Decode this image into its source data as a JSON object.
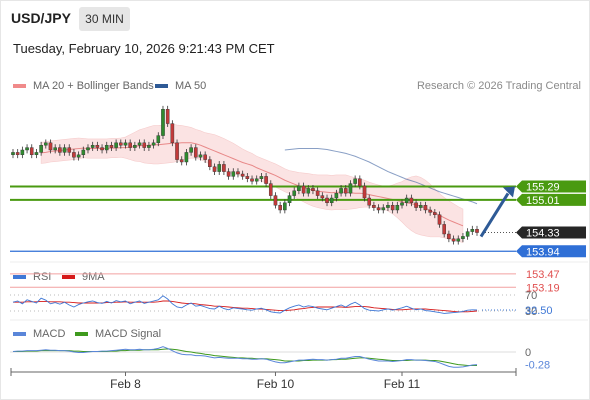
{
  "header": {
    "symbol": "USD/JPY",
    "timeframe": "30 MIN",
    "datetime": "Tuesday, February 10, 2026 9:21:43 PM CET",
    "copyright": "Research © 2026 Trading Central"
  },
  "legend": {
    "bollinger": {
      "label": "MA 20 + Bollinger Bands",
      "color": "#f08a8a"
    },
    "ma50": {
      "label": "MA 50",
      "color": "#2e5a96"
    }
  },
  "chart_data": [
    {
      "type": "candlestick",
      "title": "",
      "ylim": [
        152.9,
        155.9
      ],
      "price_labels": [
        {
          "text": "155.29",
          "value": 155.29,
          "role": "resistance",
          "color": "#4a9a10"
        },
        {
          "text": "155.01",
          "value": 155.01,
          "role": "resistance",
          "color": "#4a9a10"
        },
        {
          "text": "154.33",
          "value": 154.33,
          "role": "last-price",
          "color": "#222222"
        },
        {
          "text": "153.94",
          "value": 153.94,
          "role": "support",
          "color": "#2f6fd6"
        },
        {
          "text": "153.47",
          "value": 153.47,
          "role": "support",
          "color": "#e05050"
        },
        {
          "text": "153.19",
          "value": 153.19,
          "role": "support",
          "color": "#e05050"
        }
      ],
      "forecast_arrow": {
        "from": 154.33,
        "to": 155.29,
        "direction": "up",
        "color": "#2e5a96"
      },
      "close": [
        156.0,
        155.95,
        156.05,
        156.1,
        155.95,
        156.0,
        156.15,
        156.2,
        156.05,
        156.1,
        156.0,
        156.1,
        156.0,
        155.9,
        155.95,
        156.05,
        156.1,
        156.15,
        156.1,
        156.05,
        156.15,
        156.1,
        156.2,
        156.15,
        156.2,
        156.1,
        156.15,
        156.2,
        156.1,
        156.15,
        156.2,
        156.35,
        156.9,
        156.6,
        156.2,
        155.85,
        155.8,
        156.0,
        156.1,
        155.9,
        155.95,
        155.85,
        155.7,
        155.6,
        155.75,
        155.6,
        155.5,
        155.6,
        155.55,
        155.5,
        155.45,
        155.4,
        155.45,
        155.5,
        155.35,
        155.1,
        154.9,
        154.8,
        154.95,
        155.1,
        155.2,
        155.3,
        155.15,
        155.25,
        155.2,
        155.1,
        155.05,
        154.95,
        155.05,
        155.15,
        155.25,
        155.15,
        155.35,
        155.45,
        155.3,
        155.05,
        154.9,
        154.85,
        154.8,
        154.85,
        154.9,
        154.8,
        154.9,
        154.95,
        155.05,
        154.95,
        154.85,
        154.9,
        154.8,
        154.75,
        154.7,
        154.5,
        154.3,
        154.2,
        154.15,
        154.2,
        154.25,
        154.35,
        154.4,
        154.33
      ],
      "ma20": [
        155.99,
        156.0,
        156.02,
        156.03,
        156.04,
        156.05,
        156.06,
        156.07,
        156.08,
        156.09,
        156.08,
        156.08,
        156.08,
        156.08,
        156.08,
        156.09,
        156.09,
        156.1,
        156.1,
        156.11,
        156.12,
        156.14,
        156.14,
        156.15,
        156.16,
        156.16,
        156.17,
        156.18,
        156.19,
        156.19,
        156.2,
        156.2,
        156.2,
        156.18,
        156.15,
        156.11,
        156.07,
        156.03,
        155.99,
        155.95,
        155.91,
        155.87,
        155.83,
        155.79,
        155.76,
        155.73,
        155.68,
        155.64,
        155.6,
        155.56,
        155.52,
        155.47,
        155.42,
        155.38,
        155.34,
        155.3,
        155.27,
        155.24,
        155.21,
        155.19,
        155.18,
        155.17,
        155.16,
        155.17,
        155.17,
        155.17,
        155.16,
        155.15,
        155.15,
        155.14,
        155.12,
        155.1,
        155.08,
        155.06,
        155.04,
        155.02,
        155.0,
        154.97,
        154.95,
        154.93,
        154.91,
        154.88,
        154.84,
        154.79,
        154.74,
        154.69,
        154.64,
        154.59,
        154.55,
        154.51,
        154.47
      ],
      "ma20_start_index": 6,
      "bollinger_width": [
        0.22,
        0.22,
        0.22,
        0.22,
        0.22,
        0.22,
        0.22,
        0.22,
        0.22,
        0.2,
        0.2,
        0.2,
        0.2,
        0.2,
        0.2,
        0.2,
        0.2,
        0.2,
        0.22,
        0.26,
        0.3,
        0.33,
        0.36,
        0.38,
        0.4,
        0.4,
        0.4,
        0.4,
        0.4,
        0.38,
        0.36,
        0.34,
        0.32,
        0.3,
        0.3,
        0.3,
        0.32,
        0.34,
        0.34,
        0.34,
        0.33,
        0.32,
        0.3,
        0.28,
        0.26,
        0.25,
        0.24,
        0.24,
        0.24,
        0.24,
        0.24,
        0.24,
        0.24,
        0.24,
        0.26,
        0.28,
        0.3,
        0.32,
        0.33,
        0.34,
        0.35,
        0.36,
        0.36,
        0.36,
        0.36,
        0.36,
        0.34,
        0.32,
        0.3,
        0.28,
        0.26,
        0.25,
        0.24,
        0.24,
        0.26,
        0.3,
        0.36,
        0.42,
        0.5,
        0.56,
        0.6,
        0.6,
        0.58,
        0.55,
        0.5,
        0.45,
        0.42,
        0.4,
        0.38,
        0.36,
        0.35
      ],
      "ma50": [
        156.05,
        156.06,
        156.07,
        156.08,
        156.08,
        156.08,
        156.08,
        156.08,
        156.07,
        156.06,
        156.04,
        156.02,
        156.0,
        155.98,
        155.95,
        155.92,
        155.88,
        155.84,
        155.8,
        155.75,
        155.7,
        155.65,
        155.6,
        155.56,
        155.52,
        155.48,
        155.44,
        155.41,
        155.38,
        155.34,
        155.3,
        155.26,
        155.22,
        155.18,
        155.15,
        155.12,
        155.09,
        155.06,
        155.03,
        155.0,
        154.97,
        154.93
      ],
      "ma50_start_index": 58,
      "x_tick_labels": [
        {
          "label": "Feb 8",
          "index": 24
        },
        {
          "label": "Feb 10",
          "index": 56
        },
        {
          "label": "Feb 11",
          "index": 83
        }
      ]
    },
    {
      "type": "line",
      "title": "RSI",
      "ylim": [
        0,
        100
      ],
      "levels": [
        70,
        30
      ],
      "level_labels": [
        "70",
        "30"
      ],
      "last_value_label": "32.50",
      "series": [
        {
          "name": "RSI",
          "color": "#3f78d6",
          "values": [
            52,
            55,
            48,
            58,
            54,
            50,
            62,
            57,
            48,
            51,
            47,
            52,
            45,
            40,
            46,
            50,
            53,
            55,
            51,
            49,
            54,
            50,
            56,
            53,
            55,
            48,
            52,
            55,
            49,
            52,
            55,
            58,
            68,
            60,
            48,
            40,
            38,
            45,
            50,
            42,
            44,
            40,
            36,
            35,
            42,
            36,
            33,
            38,
            36,
            35,
            33,
            32,
            35,
            37,
            33,
            28,
            26,
            25,
            32,
            38,
            42,
            45,
            40,
            43,
            41,
            37,
            35,
            33,
            37,
            41,
            45,
            40,
            47,
            52,
            45,
            36,
            32,
            31,
            30,
            33,
            35,
            32,
            35,
            38,
            42,
            37,
            33,
            35,
            31,
            30,
            28,
            26,
            24,
            25,
            26,
            27,
            29,
            32,
            33,
            32.5
          ]
        },
        {
          "name": "9MA",
          "color": "#d61a1a",
          "values": [
            52,
            52,
            52,
            53,
            53,
            53,
            54,
            54,
            53,
            53,
            53,
            52,
            52,
            51,
            50,
            50,
            50,
            50,
            50,
            50,
            51,
            51,
            52,
            52,
            53,
            52,
            52,
            52,
            52,
            52,
            52,
            53,
            55,
            55,
            54,
            52,
            50,
            49,
            49,
            48,
            46,
            45,
            44,
            42,
            42,
            41,
            40,
            39,
            38,
            37,
            37,
            36,
            35,
            35,
            34,
            33,
            32,
            31,
            31,
            32,
            33,
            35,
            36,
            38,
            39,
            40,
            40,
            40,
            40,
            40,
            40,
            39,
            40,
            41,
            41,
            41,
            40,
            38,
            37,
            36,
            35,
            34,
            33,
            33,
            34,
            35,
            35,
            35,
            35,
            34,
            33,
            32,
            31,
            30,
            29,
            28,
            28,
            28,
            29,
            30
          ]
        }
      ]
    },
    {
      "type": "line",
      "title": "MACD",
      "zero_label": "0",
      "last_value_label": "-0.28",
      "series": [
        {
          "name": "MACD",
          "color": "#5a86d9",
          "values": [
            0.01,
            0.02,
            0.02,
            0.03,
            0.03,
            0.03,
            0.04,
            0.05,
            0.04,
            0.04,
            0.03,
            0.03,
            0.02,
            0.0,
            -0.01,
            -0.01,
            0.0,
            0.01,
            0.01,
            0.02,
            0.02,
            0.03,
            0.04,
            0.05,
            0.06,
            0.05,
            0.05,
            0.06,
            0.05,
            0.05,
            0.06,
            0.08,
            0.12,
            0.08,
            0.03,
            -0.02,
            -0.05,
            -0.06,
            -0.06,
            -0.08,
            -0.08,
            -0.09,
            -0.11,
            -0.13,
            -0.12,
            -0.13,
            -0.14,
            -0.14,
            -0.14,
            -0.15,
            -0.15,
            -0.16,
            -0.16,
            -0.15,
            -0.16,
            -0.19,
            -0.22,
            -0.24,
            -0.24,
            -0.22,
            -0.2,
            -0.18,
            -0.18,
            -0.17,
            -0.16,
            -0.17,
            -0.17,
            -0.18,
            -0.17,
            -0.16,
            -0.14,
            -0.14,
            -0.12,
            -0.1,
            -0.1,
            -0.13,
            -0.16,
            -0.18,
            -0.2,
            -0.2,
            -0.2,
            -0.21,
            -0.2,
            -0.19,
            -0.17,
            -0.17,
            -0.18,
            -0.18,
            -0.19,
            -0.2,
            -0.21,
            -0.24,
            -0.28,
            -0.32,
            -0.34,
            -0.34,
            -0.33,
            -0.31,
            -0.29,
            -0.28
          ]
        },
        {
          "name": "MACD Signal",
          "color": "#3f9a1e",
          "values": [
            0.01,
            0.01,
            0.01,
            0.02,
            0.02,
            0.02,
            0.03,
            0.03,
            0.03,
            0.03,
            0.03,
            0.03,
            0.03,
            0.02,
            0.02,
            0.01,
            0.01,
            0.01,
            0.01,
            0.01,
            0.01,
            0.02,
            0.02,
            0.03,
            0.03,
            0.04,
            0.04,
            0.04,
            0.05,
            0.05,
            0.05,
            0.05,
            0.06,
            0.07,
            0.06,
            0.05,
            0.03,
            0.01,
            0.0,
            -0.02,
            -0.03,
            -0.05,
            -0.06,
            -0.08,
            -0.09,
            -0.1,
            -0.11,
            -0.12,
            -0.13,
            -0.13,
            -0.14,
            -0.14,
            -0.15,
            -0.15,
            -0.15,
            -0.16,
            -0.17,
            -0.18,
            -0.2,
            -0.2,
            -0.2,
            -0.2,
            -0.19,
            -0.19,
            -0.18,
            -0.18,
            -0.18,
            -0.18,
            -0.17,
            -0.17,
            -0.16,
            -0.16,
            -0.15,
            -0.14,
            -0.13,
            -0.13,
            -0.14,
            -0.15,
            -0.16,
            -0.17,
            -0.18,
            -0.19,
            -0.19,
            -0.19,
            -0.19,
            -0.18,
            -0.18,
            -0.18,
            -0.18,
            -0.19,
            -0.19,
            -0.2,
            -0.22,
            -0.24,
            -0.26,
            -0.28,
            -0.29,
            -0.3,
            -0.3,
            -0.3
          ]
        }
      ]
    }
  ]
}
